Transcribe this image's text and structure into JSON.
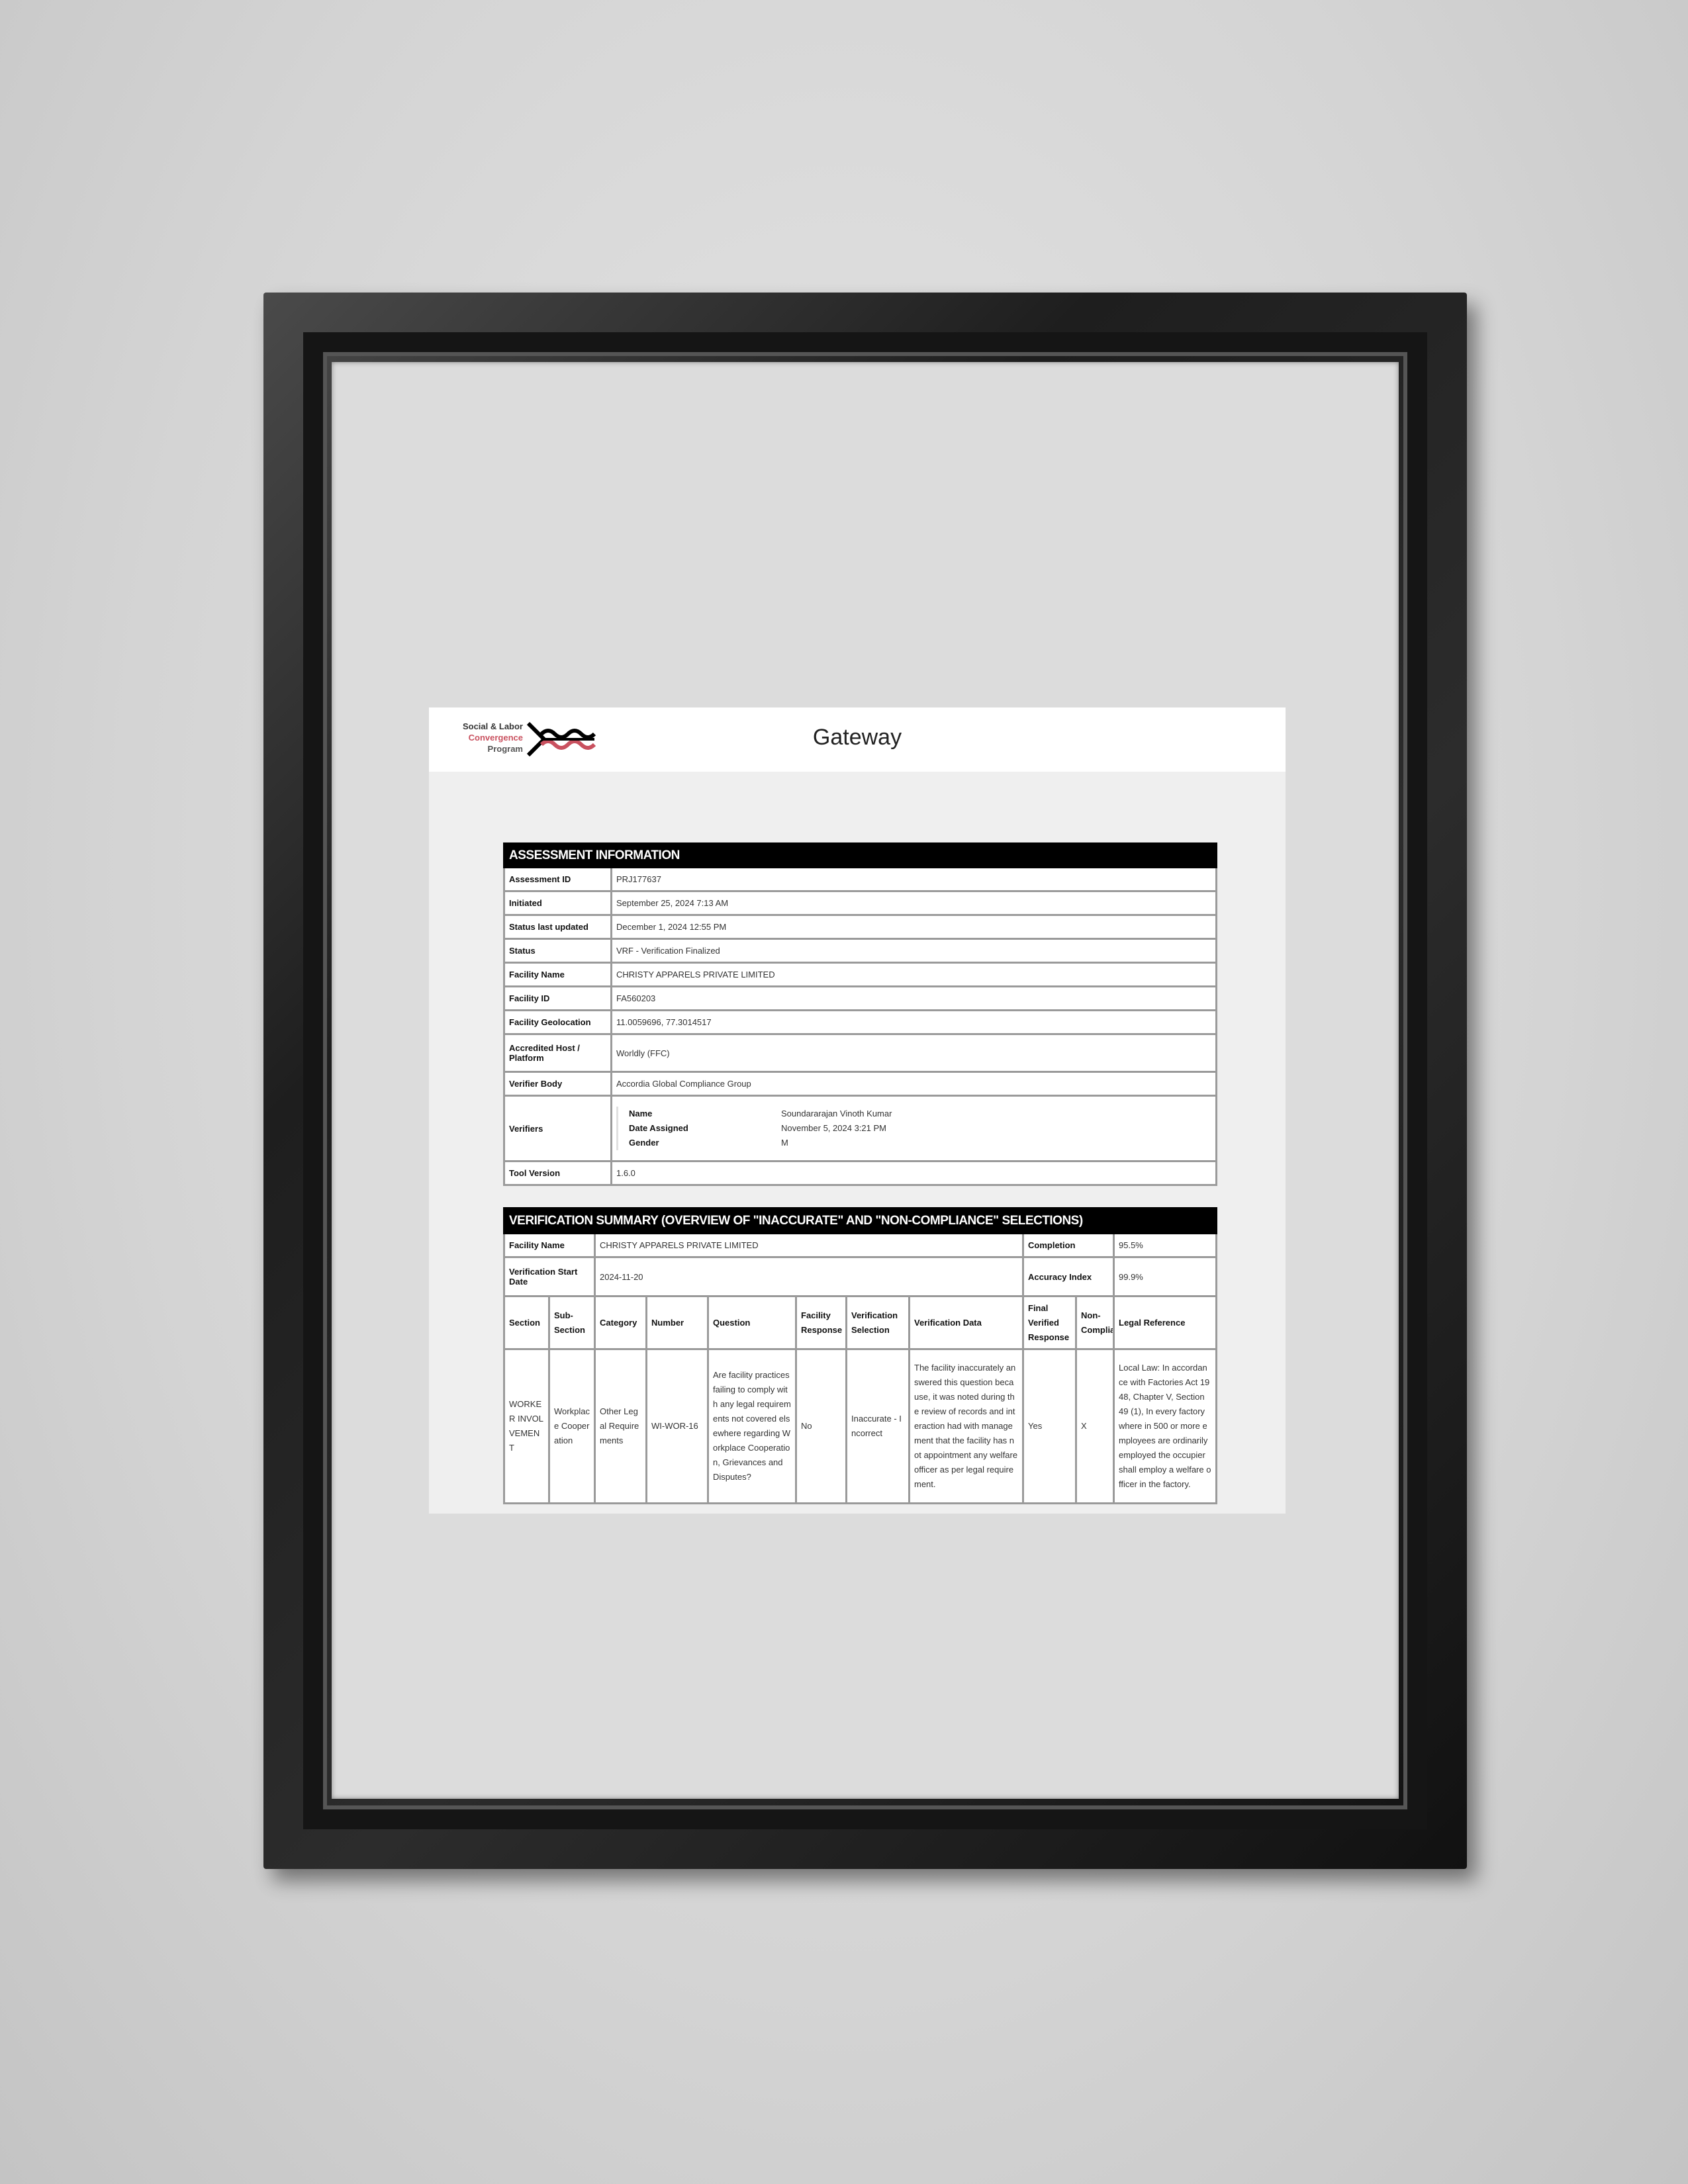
{
  "header": {
    "logo_lines": [
      "Social & Labor",
      "Convergence",
      "Program"
    ],
    "title": "Gateway"
  },
  "assessment": {
    "heading": "ASSESSMENT INFORMATION",
    "rows": [
      {
        "label": "Assessment ID",
        "value": "PRJ177637"
      },
      {
        "label": "Initiated",
        "value": "September 25, 2024 7:13 AM"
      },
      {
        "label": "Status last updated",
        "value": "December 1, 2024 12:55 PM"
      },
      {
        "label": "Status",
        "value": "VRF - Verification Finalized"
      },
      {
        "label": "Facility Name",
        "value": "CHRISTY APPARELS PRIVATE LIMITED"
      },
      {
        "label": "Facility ID",
        "value": "FA560203"
      },
      {
        "label": "Facility Geolocation",
        "value": "11.0059696, 77.3014517"
      },
      {
        "label": "Accredited Host / Platform",
        "value": "Worldly (FFC)"
      },
      {
        "label": "Verifier Body",
        "value": "Accordia Global Compliance Group"
      }
    ],
    "verifiers": {
      "label": "Verifiers",
      "name_label": "Name",
      "name": "Soundararajan Vinoth Kumar",
      "date_label": "Date Assigned",
      "date": "November 5, 2024 3:21 PM",
      "gender_label": "Gender",
      "gender": "M"
    },
    "tool_version": {
      "label": "Tool Version",
      "value": "1.6.0"
    }
  },
  "summary": {
    "heading": "VERIFICATION SUMMARY (OVERVIEW OF \"INACCURATE\" AND \"NON-COMPLIANCE\" SELECTIONS)",
    "facility_name_label": "Facility Name",
    "facility_name": "CHRISTY APPARELS PRIVATE LIMITED",
    "completion_label": "Completion",
    "completion": "95.5%",
    "start_date_label": "Verification Start Date",
    "start_date": "2024-11-20",
    "accuracy_label": "Accuracy Index",
    "accuracy": "99.9%",
    "columns": [
      "Section",
      "Sub-Section",
      "Category",
      "Number",
      "Question",
      "Facility Response",
      "Verification Selection",
      "Verification Data",
      "Final Verified Response",
      "Non-Compliance",
      "Legal Reference"
    ],
    "rows": [
      [
        "WORKER INVOLVEMENT",
        "Workplace Cooperation",
        "Other Legal Requirements",
        "WI-WOR-16",
        "Are facility practices failing to comply with any legal requirements not covered elsewhere regarding Workplace Cooperation, Grievances and Disputes?",
        "No",
        "Inaccurate - Incorrect",
        "The facility inaccurately answered this question because, it was noted during the review of records and interaction had with management that the facility has not appointment any welfare officer as per legal requirement.",
        "Yes",
        "X",
        "Local Law: In accordance with Factories Act 1948, Chapter V, Section 49 (1), In every factory where in 500 or more employees are ordinarily employed the occupier shall employ a welfare officer in the factory."
      ]
    ]
  }
}
